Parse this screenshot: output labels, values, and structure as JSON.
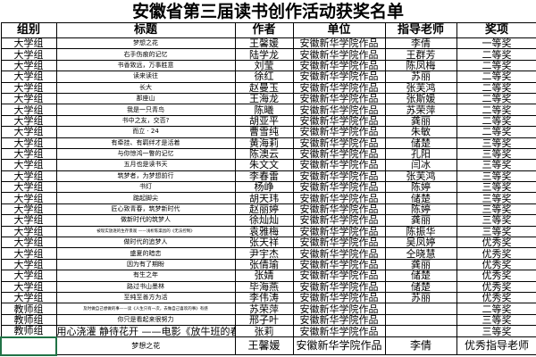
{
  "title": "安徽省第三届读书创作活动获奖名单",
  "headers": [
    "组别",
    "标题",
    "作者",
    "单位",
    "指导老师",
    "奖项"
  ],
  "rows": [
    [
      "大学组",
      "梦想之花",
      "王馨媛",
      "安徽新华学院作品",
      "李倩",
      "一等奖"
    ],
    [
      "大学组",
      "右手伤痕的记忆",
      "陆学龙",
      "安徽新华学院作品",
      "王群芳",
      "二等奖"
    ],
    [
      "大学组",
      "书香致远，万事胜意",
      "刘莹",
      "安徽新华学院作品",
      "陈凤梅",
      "二等奖"
    ],
    [
      "大学组",
      "读来读往",
      "徐红",
      "安徽新华学院作品",
      "苏丽",
      "二等奖"
    ],
    [
      "大学组",
      "长大",
      "赵曼玉",
      "安徽新华学院作品",
      "张芙鸿",
      "二等奖"
    ],
    [
      "大学组",
      "那座山",
      "王海龙",
      "安徽新华学院作品",
      "张斯媛",
      "二等奖"
    ],
    [
      "大学组",
      "我是一只青鸟",
      "陈曦",
      "安徽新华学院作品",
      "苏荣萍",
      "二等奖"
    ],
    [
      "大学组",
      "书中之友，交否?",
      "胡亚平",
      "安徽新华学院作品",
      "龚丽",
      "二等奖"
    ],
    [
      "大学组",
      "而立 · 24",
      "曹雪纯",
      "安徽新华学院作品",
      "朱敏",
      "二等奖"
    ],
    [
      "大学组",
      "有牵挂、有羁绊才是活着",
      "黄海莉",
      "安徽新华学院作品",
      "储楚",
      "三等奖"
    ],
    [
      "大学组",
      "与你惊鸿一瞥的记忆",
      "陈澳云",
      "安徽新华学院作品",
      "孔阳",
      "三等奖"
    ],
    [
      "大学组",
      "五月也是读书天",
      "朱文文",
      "安徽新华学院作品",
      "闫冰",
      "三等奖"
    ],
    [
      "大学组",
      "筑梦者，为梦想前行",
      "李春雷",
      "安徽新华学院作品",
      "张芙鸿",
      "三等奖"
    ],
    [
      "大学组",
      "书灯",
      "杨峥",
      "安徽新华学院作品",
      "陈婷",
      "三等奖"
    ],
    [
      "大学组",
      "踮起脚尖",
      "胡天玮",
      "安徽新华学院作品",
      "储楚",
      "三等奖"
    ],
    [
      "大学组",
      "匠心致青春，筑梦新时代",
      "赵丽婷",
      "安徽新华学院作品",
      "陈婷",
      "三等奖"
    ],
    [
      "大学组",
      "做新时代的筑梦人",
      "徐灿灿",
      "安徽新华学院作品",
      "龚丽",
      "三等奖"
    ],
    [
      "大学组",
      "被现实放逐的生存景观 ——浅析陈渠昌的《无法控制》",
      "袁雅梅",
      "安徽新华学院作品",
      "陈振华",
      "三等奖"
    ],
    [
      "大学组",
      "做时代的追梦人",
      "张天祥",
      "安徽新华学院作品",
      "吴凤婷",
      "优秀奖"
    ],
    [
      "大学组",
      "盛夏的暗恋",
      "尹宇杰",
      "安徽新华学院作品",
      "仝晓慧",
      "优秀奖"
    ],
    [
      "大学组",
      "因为有了期盼",
      "张倩瑜",
      "安徽新华学院作品",
      "龚丽",
      "优秀奖"
    ],
    [
      "大学组",
      "有生之年",
      "张婧",
      "安徽新华学院作品",
      "储楚",
      "优秀奖"
    ],
    [
      "大学组",
      "路过书山墨林",
      "毕海燕",
      "安徽新华学院作品",
      "储楚",
      "优秀奖"
    ],
    [
      "大学组",
      "至纯至善方为活",
      "李伟涛",
      "安徽新华学院作品",
      "苏丽",
      "优秀奖"
    ],
    [
      "教师组",
      "及时做自己想做的事——读《人生只有一次，去做自己喜欢的事》有感",
      "苏荣萍",
      "安徽新华学院作品",
      "",
      "二等奖"
    ],
    [
      "教师组",
      "你只是看起来很努力",
      "邢子叶",
      "安徽新华学院作品",
      "",
      "三等奖"
    ],
    [
      "教师组",
      "用心浇灌 静待花开 ——电影《放牛班的春天》观后感",
      "张莉",
      "安徽新华学院作品",
      "",
      "三等奖"
    ]
  ],
  "last_row": [
    "",
    "梦想之花",
    "王馨媛",
    "安徽新华学院作品",
    "李倩",
    "优秀指导老师"
  ]
}
